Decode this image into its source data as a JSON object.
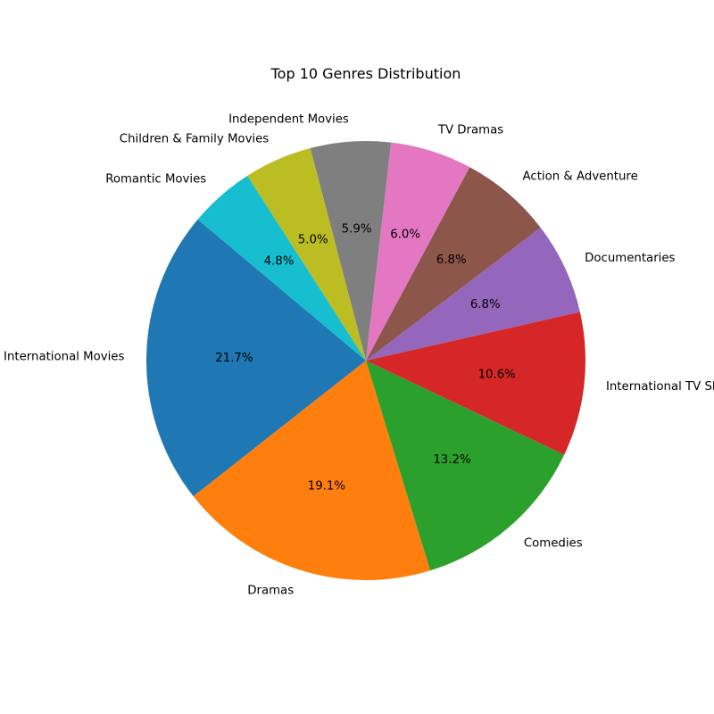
{
  "chart_data": {
    "type": "pie",
    "title": "Top 10 Genres Distribution",
    "start_angle_deg": 140,
    "direction": "counterclockwise",
    "slices": [
      {
        "label": "International Movies",
        "percent": 21.7,
        "percent_label": "21.7%",
        "color": "#1f77b4"
      },
      {
        "label": "Dramas",
        "percent": 19.1,
        "percent_label": "19.1%",
        "color": "#ff7f0e"
      },
      {
        "label": "Comedies",
        "percent": 13.2,
        "percent_label": "13.2%",
        "color": "#2ca02c"
      },
      {
        "label": "International TV Shows",
        "percent": 10.6,
        "percent_label": "10.6%",
        "color": "#d62728"
      },
      {
        "label": "Documentaries",
        "percent": 6.8,
        "percent_label": "6.8%",
        "color": "#9467bd"
      },
      {
        "label": "Action & Adventure",
        "percent": 6.8,
        "percent_label": "6.8%",
        "color": "#8c564b"
      },
      {
        "label": "TV Dramas",
        "percent": 6.0,
        "percent_label": "6.0%",
        "color": "#e377c2"
      },
      {
        "label": "Independent Movies",
        "percent": 5.9,
        "percent_label": "5.9%",
        "color": "#7f7f7f"
      },
      {
        "label": "Children & Family Movies",
        "percent": 5.0,
        "percent_label": "5.0%",
        "color": "#bcbd22"
      },
      {
        "label": "Romantic Movies",
        "percent": 4.8,
        "percent_label": "4.8%",
        "color": "#17becf"
      }
    ]
  }
}
